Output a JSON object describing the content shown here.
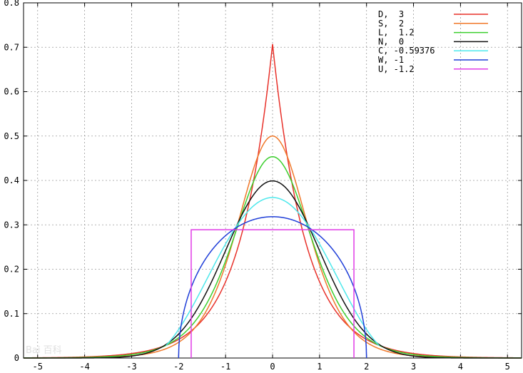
{
  "chart_data": {
    "type": "line",
    "title": "",
    "xlabel": "",
    "ylabel": "",
    "xlim": [
      -5.3,
      5.3
    ],
    "ylim": [
      0,
      0.8
    ],
    "x_ticks": [
      -5,
      -4,
      -3,
      -2,
      -1,
      0,
      1,
      2,
      3,
      4,
      5
    ],
    "x_tick_labels": [
      "-5",
      "-4",
      "-3",
      "-2",
      "-1",
      "0",
      "1",
      "2",
      "3",
      "4",
      "5"
    ],
    "y_ticks": [
      0,
      0.1,
      0.2,
      0.3,
      0.4,
      0.5,
      0.6,
      0.7,
      0.8
    ],
    "y_tick_labels": [
      "0",
      "0.1",
      "0.2",
      "0.3",
      "0.4",
      "0.5",
      "0.6",
      "0.7",
      "0.8"
    ],
    "grid": true,
    "legend_position": "top-right",
    "series": [
      {
        "name": "D,  3",
        "dist": "laplace",
        "color": "#e8312a",
        "x": [
          -5,
          -4,
          -3,
          -2,
          -1.5,
          -1,
          -0.5,
          0,
          0.5,
          1,
          1.5,
          2,
          3,
          4,
          5
        ],
        "y": [
          0.0006,
          0.0025,
          0.0101,
          0.042,
          0.084,
          0.171,
          0.35,
          0.707,
          0.35,
          0.171,
          0.084,
          0.042,
          0.0101,
          0.0025,
          0.0006
        ]
      },
      {
        "name": "S,  2",
        "dist": "logistic",
        "color": "#f0782a",
        "x": [
          -5,
          -4,
          -3,
          -2,
          -1.5,
          -1,
          -0.5,
          0,
          0.5,
          1,
          1.5,
          2,
          3,
          4,
          5
        ],
        "y": [
          0.0013,
          0.0046,
          0.016,
          0.054,
          0.1,
          0.176,
          0.291,
          0.5,
          0.291,
          0.176,
          0.1,
          0.054,
          0.016,
          0.0046,
          0.0013
        ]
      },
      {
        "name": "L,  1.2",
        "dist": "logistic",
        "color": "#3ccf2e",
        "x": [
          -5,
          -4,
          -3,
          -2,
          -1.5,
          -1,
          -0.5,
          0,
          0.5,
          1,
          1.5,
          2,
          3,
          4,
          5
        ],
        "y": [
          0.0005,
          0.002,
          0.01,
          0.043,
          0.088,
          0.163,
          0.294,
          0.453,
          0.294,
          0.163,
          0.088,
          0.043,
          0.01,
          0.002,
          0.0005
        ]
      },
      {
        "name": "N,  0",
        "dist": "normal",
        "color": "#111111",
        "x": [
          -5,
          -4,
          -3,
          -2,
          -1.5,
          -1,
          -0.5,
          0,
          0.5,
          1,
          1.5,
          2,
          3,
          4,
          5
        ],
        "y": [
          0.0,
          0.0001,
          0.0044,
          0.054,
          0.13,
          0.242,
          0.352,
          0.399,
          0.352,
          0.242,
          0.13,
          0.054,
          0.0044,
          0.0001,
          0.0
        ]
      },
      {
        "name": "C, -0.59376",
        "dist": "raised-cosine",
        "color": "#4de8ec",
        "x": [
          -2.27,
          -2,
          -1.5,
          -1,
          -0.5,
          0,
          0.5,
          1,
          1.5,
          2,
          2.27
        ],
        "y": [
          0.0,
          0.007,
          0.067,
          0.171,
          0.274,
          0.361,
          0.274,
          0.171,
          0.067,
          0.007,
          0.0
        ]
      },
      {
        "name": "W, -1",
        "dist": "semicircle",
        "color": "#1f3ed8",
        "x": [
          -2,
          -1.9,
          -1.5,
          -1,
          -0.5,
          0,
          0.5,
          1,
          1.5,
          1.9,
          2
        ],
        "y": [
          0.0,
          0.099,
          0.211,
          0.276,
          0.308,
          0.318,
          0.308,
          0.276,
          0.211,
          0.099,
          0.0
        ]
      },
      {
        "name": "U, -1.2",
        "dist": "uniform",
        "color": "#e03be6",
        "x": [
          -1.732,
          -1.732,
          1.732,
          1.732
        ],
        "y": [
          0,
          0.289,
          0.289,
          0
        ]
      }
    ]
  },
  "watermark": {
    "text": "Bai 百科"
  }
}
